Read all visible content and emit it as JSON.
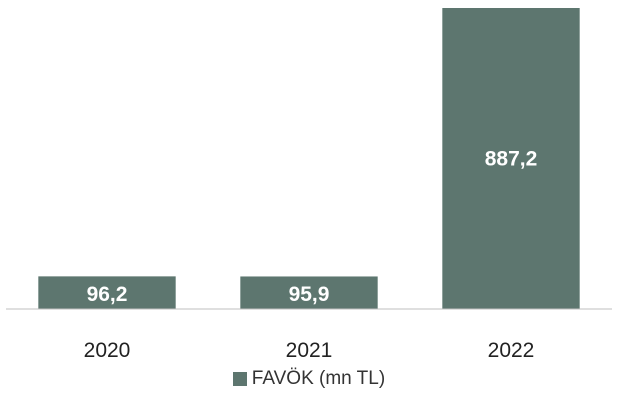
{
  "chart_data": {
    "type": "bar",
    "categories": [
      "2020",
      "2021",
      "2022"
    ],
    "series": [
      {
        "name": "FAVÖK (mn TL)",
        "values": [
          96.2,
          95.9,
          887.2
        ],
        "labels": [
          "96,2",
          "95,9",
          "887,2"
        ]
      }
    ],
    "ylim": [
      0,
      887.2
    ],
    "grid": false,
    "legend": "bottom"
  },
  "colors": {
    "bar": "#5d766f",
    "axis": "#bfbfbf"
  }
}
